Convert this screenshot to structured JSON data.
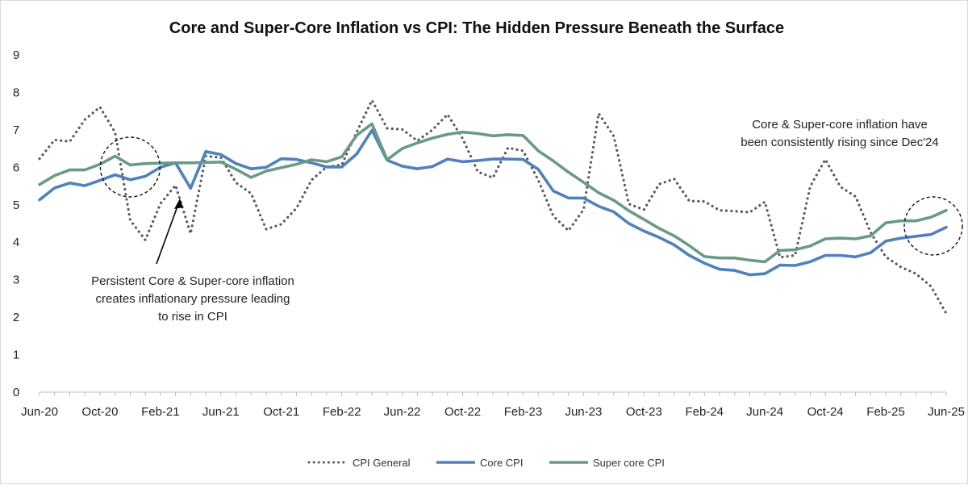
{
  "chart_data": {
    "type": "line",
    "title": "Core and Super-Core Inflation vs CPI: The Hidden Pressure Beneath the Surface",
    "xlabel": "",
    "ylabel": "",
    "ylim": [
      0,
      9
    ],
    "yticks": [
      "0",
      "1",
      "2",
      "3",
      "4",
      "5",
      "6",
      "7",
      "8",
      "9"
    ],
    "xtick_labels": [
      "Jun-20",
      "Oct-20",
      "Feb-21",
      "Jun-21",
      "Oct-21",
      "Feb-22",
      "Jun-22",
      "Oct-22",
      "Feb-23",
      "Jun-23",
      "Oct-23",
      "Feb-24",
      "Jun-24",
      "Oct-24",
      "Feb-25",
      "Jun-25"
    ],
    "grid": false,
    "legend_position": "bottom",
    "categories": [
      "Jun-20",
      "Jul-20",
      "Aug-20",
      "Sep-20",
      "Oct-20",
      "Nov-20",
      "Dec-20",
      "Jan-21",
      "Feb-21",
      "Mar-21",
      "Apr-21",
      "May-21",
      "Jun-21",
      "Jul-21",
      "Aug-21",
      "Sep-21",
      "Oct-21",
      "Nov-21",
      "Dec-21",
      "Jan-22",
      "Feb-22",
      "Mar-22",
      "Apr-22",
      "May-22",
      "Jun-22",
      "Jul-22",
      "Aug-22",
      "Sep-22",
      "Oct-22",
      "Nov-22",
      "Dec-22",
      "Jan-23",
      "Feb-23",
      "Mar-23",
      "Apr-23",
      "May-23",
      "Jun-23",
      "Jul-23",
      "Aug-23",
      "Sep-23",
      "Oct-23",
      "Nov-23",
      "Dec-23",
      "Jan-24",
      "Feb-24",
      "Mar-24",
      "Apr-24",
      "May-24",
      "Jun-24",
      "Jul-24",
      "Aug-24",
      "Sep-24",
      "Oct-24",
      "Nov-24",
      "Dec-24",
      "Jan-25",
      "Feb-25",
      "Mar-25",
      "Apr-25",
      "May-25",
      "Jun-25"
    ],
    "series": [
      {
        "name": "CPI General",
        "color": "#595959",
        "style": "dotted",
        "values": [
          6.23,
          6.73,
          6.69,
          7.27,
          7.61,
          6.93,
          4.59,
          4.06,
          5.03,
          5.52,
          4.23,
          6.3,
          6.26,
          5.59,
          5.3,
          4.35,
          4.48,
          4.91,
          5.66,
          6.01,
          6.07,
          6.95,
          7.79,
          7.04,
          7.01,
          6.71,
          7.0,
          7.41,
          6.77,
          5.88,
          5.72,
          6.52,
          6.44,
          5.66,
          4.7,
          4.31,
          4.87,
          7.44,
          6.83,
          5.02,
          4.87,
          5.55,
          5.69,
          5.1,
          5.09,
          4.85,
          4.83,
          4.8,
          5.08,
          3.6,
          3.65,
          5.49,
          6.21,
          5.48,
          5.22,
          4.26,
          3.61,
          3.34,
          3.16,
          2.82,
          2.1
        ]
      },
      {
        "name": "Core CPI",
        "color": "#4f81bd",
        "style": "solid",
        "values": [
          5.13,
          5.45,
          5.58,
          5.51,
          5.65,
          5.8,
          5.67,
          5.76,
          6.0,
          6.12,
          5.44,
          6.42,
          6.34,
          6.1,
          5.96,
          6.0,
          6.23,
          6.21,
          6.12,
          6.01,
          6.01,
          6.36,
          6.99,
          6.19,
          6.03,
          5.96,
          6.02,
          6.22,
          6.15,
          6.18,
          6.22,
          6.22,
          6.21,
          5.95,
          5.37,
          5.18,
          5.18,
          4.96,
          4.81,
          4.5,
          4.3,
          4.13,
          3.93,
          3.65,
          3.44,
          3.28,
          3.25,
          3.13,
          3.16,
          3.39,
          3.38,
          3.48,
          3.65,
          3.65,
          3.61,
          3.72,
          4.03,
          4.11,
          4.16,
          4.21,
          4.4
        ]
      },
      {
        "name": "Super core CPI",
        "color": "#6a9a86",
        "style": "solid",
        "values": [
          5.54,
          5.78,
          5.93,
          5.93,
          6.08,
          6.3,
          6.06,
          6.1,
          6.11,
          6.12,
          6.12,
          6.13,
          6.14,
          5.95,
          5.73,
          5.9,
          5.99,
          6.08,
          6.2,
          6.15,
          6.28,
          6.86,
          7.16,
          6.2,
          6.5,
          6.65,
          6.78,
          6.88,
          6.94,
          6.9,
          6.84,
          6.87,
          6.85,
          6.44,
          6.17,
          5.87,
          5.6,
          5.32,
          5.12,
          4.84,
          4.61,
          4.37,
          4.17,
          3.91,
          3.62,
          3.58,
          3.58,
          3.52,
          3.48,
          3.78,
          3.8,
          3.9,
          4.09,
          4.11,
          4.09,
          4.17,
          4.52,
          4.57,
          4.57,
          4.67,
          4.85
        ]
      }
    ],
    "annotations": [
      {
        "text_lines": [
          "Core & Super-core inflation have",
          "been consistently rising since Dec'24"
        ],
        "anchor_month": "Jun-25"
      },
      {
        "text_lines": [
          "Persistent Core & Super-core inflation",
          "creates inflationary pressure leading",
          "to rise in CPI"
        ],
        "anchor_month": "Dec-20"
      }
    ]
  }
}
